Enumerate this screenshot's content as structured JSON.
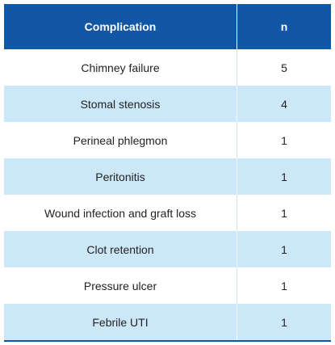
{
  "colors": {
    "header_bg": "#1257a6",
    "stripe_bg": "#cce8f8",
    "plain_bg": "#ffffff",
    "rule": "#1257a6"
  },
  "table": {
    "headers": [
      "Complication",
      "n"
    ],
    "rows": [
      {
        "complication": "Chimney failure",
        "n": "5"
      },
      {
        "complication": "Stomal stenosis",
        "n": "4"
      },
      {
        "complication": "Perineal phlegmon",
        "n": "1"
      },
      {
        "complication": "Peritonitis",
        "n": "1"
      },
      {
        "complication": "Wound infection and graft loss",
        "n": "1"
      },
      {
        "complication": "Clot retention",
        "n": "1"
      },
      {
        "complication": "Pressure ulcer",
        "n": "1"
      },
      {
        "complication": "Febrile UTI",
        "n": "1"
      }
    ]
  }
}
